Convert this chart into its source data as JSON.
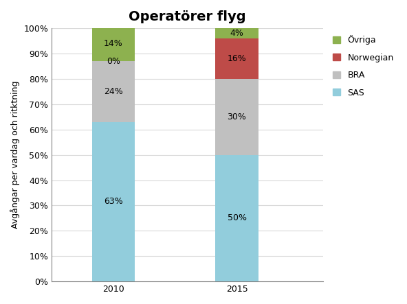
{
  "title": "Operatörer flyg",
  "ylabel": "Avgångar per vardag och ritktning",
  "categories": [
    "2010",
    "2015"
  ],
  "series": {
    "SAS": {
      "values": [
        63,
        50
      ],
      "color": "#92CDDC"
    },
    "BRA": {
      "values": [
        24,
        30
      ],
      "color": "#C0C0C0"
    },
    "Norwegian": {
      "values": [
        0,
        16
      ],
      "color": "#BE4B48"
    },
    "Övriga": {
      "values": [
        14,
        4
      ],
      "color": "#8DB14F"
    }
  },
  "series_order": [
    "SAS",
    "BRA",
    "Norwegian",
    "Övriga"
  ],
  "legend_order": [
    "Övriga",
    "Norwegian",
    "BRA",
    "SAS"
  ],
  "yticks": [
    0,
    10,
    20,
    30,
    40,
    50,
    60,
    70,
    80,
    90,
    100
  ],
  "ylim": [
    0,
    100
  ],
  "bar_width": 0.35,
  "x_positions": [
    0,
    1
  ],
  "xlim": [
    -0.5,
    1.7
  ],
  "background_color": "#FFFFFF",
  "title_fontsize": 14,
  "label_fontsize": 9,
  "tick_fontsize": 9,
  "legend_fontsize": 9,
  "grid_color": "#D9D9D9",
  "figsize": [
    5.92,
    4.43
  ],
  "dpi": 100
}
